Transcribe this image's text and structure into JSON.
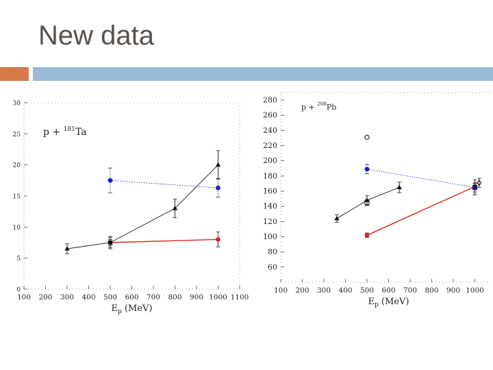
{
  "slide": {
    "title": "New data"
  },
  "colors": {
    "orange_accent": "#d67a4b",
    "blue_accent": "#9bbad7",
    "red_series": "#e02020",
    "blue_series": "#1a1ad0",
    "black_series": "#111111"
  },
  "chart_data": [
    {
      "type": "scatter",
      "title_prefix": "p + ",
      "title_sup": "181",
      "title_suffix": "Ta",
      "xlabel": "E",
      "xlabel_sub": "p",
      "xlabel_unit": " (MeV)",
      "xlim": [
        100,
        1100
      ],
      "ylim": [
        0,
        30
      ],
      "xticks": [
        100,
        200,
        300,
        400,
        500,
        600,
        700,
        800,
        900,
        1000,
        1100
      ],
      "yticks": [
        0,
        5,
        10,
        15,
        20,
        25,
        30
      ],
      "series": [
        {
          "name": "black",
          "color": "#111111",
          "marker": "triangle",
          "line": "solid",
          "x": [
            300,
            500,
            800,
            1000
          ],
          "y": [
            6.5,
            7.5,
            13.0,
            20.0
          ],
          "err": [
            0.8,
            0.8,
            1.5,
            2.3
          ]
        },
        {
          "name": "red",
          "color": "#e02020",
          "marker": "circle",
          "line": "solid",
          "x": [
            500,
            1000
          ],
          "y": [
            7.5,
            8.0
          ],
          "err": [
            0.5,
            1.2
          ]
        },
        {
          "name": "blue",
          "color": "#1a1ad0",
          "marker": "circle",
          "line": "dotted",
          "x": [
            500,
            1000
          ],
          "y": [
            17.5,
            16.3
          ],
          "err": [
            2.0,
            1.5
          ]
        },
        {
          "name": "black-square",
          "color": "#111111",
          "marker": "square",
          "line": "none",
          "x": [
            500
          ],
          "y": [
            7.5
          ],
          "err": [
            1.0
          ]
        }
      ]
    },
    {
      "type": "scatter",
      "title_prefix": "p + ",
      "title_sup": "208",
      "title_suffix": "Pb",
      "xlabel": "E",
      "xlabel_sub": "p",
      "xlabel_unit": " (MeV)",
      "xlim": [
        100,
        1100
      ],
      "ylim": [
        40,
        290
      ],
      "xticks": [
        100,
        200,
        300,
        400,
        500,
        600,
        700,
        800,
        900,
        1000
      ],
      "yticks": [
        60,
        80,
        100,
        120,
        140,
        160,
        180,
        200,
        220,
        240,
        260,
        280
      ],
      "series": [
        {
          "name": "black",
          "color": "#111111",
          "marker": "triangle",
          "line": "solid",
          "x": [
            360,
            500,
            650
          ],
          "y": [
            124,
            148,
            165
          ],
          "err": [
            5,
            6,
            7
          ]
        },
        {
          "name": "red",
          "color": "#e02020",
          "marker": "circle",
          "line": "solid",
          "x": [
            500,
            1000
          ],
          "y": [
            102,
            166
          ],
          "err": [
            3,
            4
          ]
        },
        {
          "name": "blue",
          "color": "#1a1ad0",
          "marker": "circle",
          "line": "dotted",
          "x": [
            500,
            1000
          ],
          "y": [
            189,
            165
          ],
          "err": [
            6,
            6
          ]
        },
        {
          "name": "open-circle",
          "color": "#111111",
          "marker": "open-circle",
          "line": "none",
          "x": [
            500
          ],
          "y": [
            231
          ],
          "err": [
            0
          ]
        },
        {
          "name": "open-square",
          "color": "#111111",
          "marker": "open-square",
          "line": "none",
          "x": [
            500,
            1000
          ],
          "y": [
            145,
            165
          ],
          "err": [
            4,
            10
          ]
        },
        {
          "name": "open-diamond",
          "color": "#111111",
          "marker": "open-diamond",
          "line": "none",
          "x": [
            1020
          ],
          "y": [
            171
          ],
          "err": [
            6
          ]
        }
      ]
    }
  ]
}
